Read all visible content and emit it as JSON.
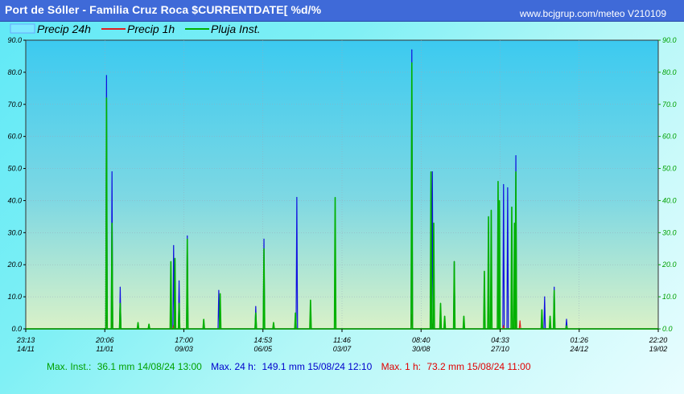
{
  "header": {
    "title": "Port de Sóller - Familia Cruz Roca $CURRENTDATE[ %d/%",
    "site": "www.bcjgrup.com/meteo V210109"
  },
  "legend": [
    {
      "label": "Precip 24h",
      "color": "#00e5ff"
    },
    {
      "label": "Precip 1h",
      "color": "#e02020"
    },
    {
      "label": "Pluja Inst.",
      "color": "#00b000"
    }
  ],
  "stats": [
    {
      "label": "Max. Inst.:",
      "value": "36.1 mm 14/08/24 13:00",
      "color": "#00a000"
    },
    {
      "label": "Max. 24 h:",
      "value": "149.1 mm 15/08/24 12:10",
      "color": "#0000cc"
    },
    {
      "label": "Max. 1 h:",
      "value": "73.2 mm 15/08/24 11:00",
      "color": "#e00000"
    }
  ],
  "chart_data": {
    "type": "area",
    "ylim": [
      0,
      90
    ],
    "yticks": [
      "0.0",
      "10.0",
      "20.0",
      "30.0",
      "40.0",
      "50.0",
      "60.0",
      "70.0",
      "80.0",
      "90.0"
    ],
    "xticks": [
      {
        "time": "23:13",
        "date": "14/11"
      },
      {
        "time": "20:06",
        "date": "11/01"
      },
      {
        "time": "17:00",
        "date": "09/03"
      },
      {
        "time": "14:53",
        "date": "06/05"
      },
      {
        "time": "11:46",
        "date": "03/07"
      },
      {
        "time": "08:40",
        "date": "30/08"
      },
      {
        "time": "04:33",
        "date": "27/10"
      },
      {
        "time": "01:26",
        "date": "24/12"
      },
      {
        "time": "22:20",
        "date": "19/02"
      }
    ],
    "x_days_span": 462,
    "series": [
      {
        "name": "Precip 24h",
        "color": "#1010e0",
        "peaks": [
          [
            59,
            79
          ],
          [
            63,
            49
          ],
          [
            69,
            13
          ],
          [
            108,
            26
          ],
          [
            112,
            15
          ],
          [
            118,
            29
          ],
          [
            141,
            12
          ],
          [
            168,
            7
          ],
          [
            174,
            28
          ],
          [
            198,
            41
          ],
          [
            282,
            87
          ],
          [
            297,
            49
          ],
          [
            313,
            21
          ],
          [
            349,
            45
          ],
          [
            352,
            44
          ],
          [
            358,
            54
          ],
          [
            379,
            10
          ],
          [
            386,
            13
          ],
          [
            395,
            3
          ]
        ]
      },
      {
        "name": "Precip 1h",
        "color": "#e02020",
        "peaks": [
          [
            59,
            4
          ],
          [
            63,
            2
          ],
          [
            108,
            1
          ],
          [
            282,
            4.5
          ],
          [
            297,
            1.5
          ],
          [
            349,
            1
          ],
          [
            358,
            2.5
          ],
          [
            361,
            2.5
          ]
        ]
      },
      {
        "name": "Pluja Inst.",
        "color": "#00b000",
        "peaks": [
          [
            59,
            72
          ],
          [
            63,
            33
          ],
          [
            69,
            8
          ],
          [
            82,
            2
          ],
          [
            90,
            1.5
          ],
          [
            106,
            21
          ],
          [
            109,
            22
          ],
          [
            112,
            8
          ],
          [
            118,
            28
          ],
          [
            130,
            3
          ],
          [
            142,
            11
          ],
          [
            168,
            5
          ],
          [
            174,
            25
          ],
          [
            181,
            2
          ],
          [
            197,
            5
          ],
          [
            208,
            9
          ],
          [
            226,
            41
          ],
          [
            282,
            83
          ],
          [
            296,
            49
          ],
          [
            298,
            33
          ],
          [
            303,
            8
          ],
          [
            306,
            4
          ],
          [
            313,
            21
          ],
          [
            320,
            4
          ],
          [
            335,
            18
          ],
          [
            338,
            35
          ],
          [
            340,
            37
          ],
          [
            345,
            46
          ],
          [
            346,
            40
          ],
          [
            355,
            38
          ],
          [
            357,
            33
          ],
          [
            358,
            49
          ],
          [
            377,
            6
          ],
          [
            383,
            4
          ],
          [
            386,
            12
          ],
          [
            395,
            1
          ]
        ]
      }
    ]
  }
}
